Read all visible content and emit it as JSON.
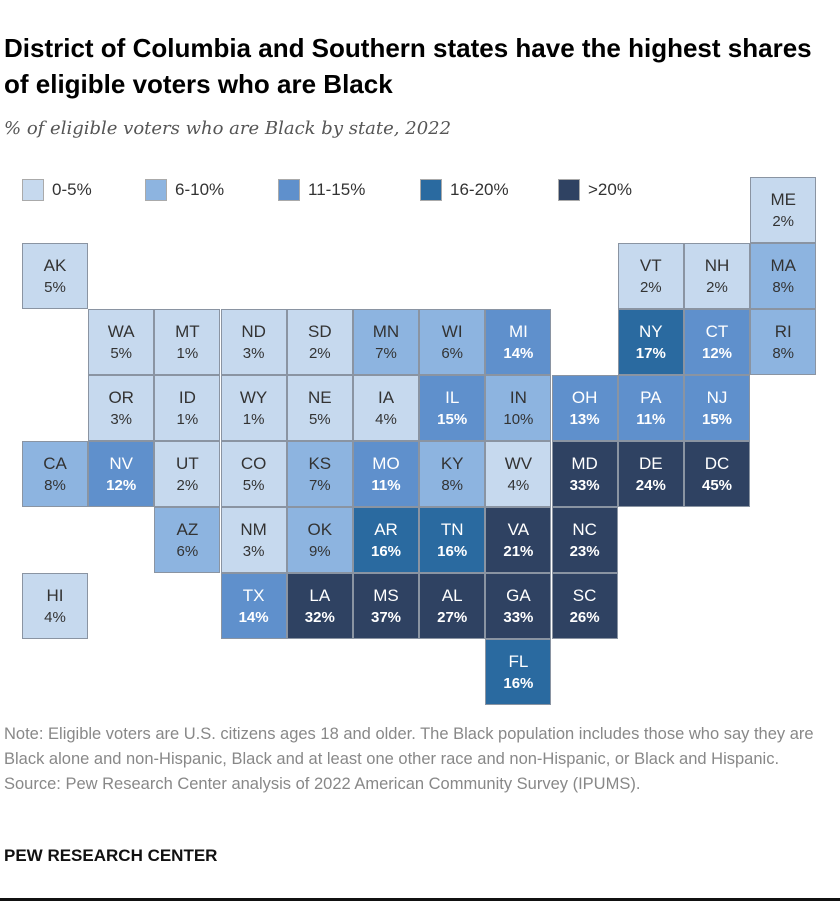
{
  "chart_data": {
    "type": "tile-map",
    "title": "District of Columbia and Southern states have the highest shares of eligible voters who are Black",
    "subtitle": "% of eligible voters who are Black by state, 2022",
    "legend": [
      {
        "label": "0-5%",
        "color": "#c6d9ee"
      },
      {
        "label": "6-10%",
        "color": "#8db4e0"
      },
      {
        "label": "11-15%",
        "color": "#5f90cc"
      },
      {
        "label": "16-20%",
        "color": "#2a6aa0"
      },
      {
        "label": ">20%",
        "color": "#2f4262"
      }
    ],
    "states": [
      {
        "abbr": "ME",
        "value": 2,
        "row": 0,
        "col": 11
      },
      {
        "abbr": "AK",
        "value": 5,
        "row": 1,
        "col": 0
      },
      {
        "abbr": "VT",
        "value": 2,
        "row": 1,
        "col": 9
      },
      {
        "abbr": "NH",
        "value": 2,
        "row": 1,
        "col": 10
      },
      {
        "abbr": "MA",
        "value": 8,
        "row": 1,
        "col": 11
      },
      {
        "abbr": "WA",
        "value": 5,
        "row": 2,
        "col": 1
      },
      {
        "abbr": "MT",
        "value": 1,
        "row": 2,
        "col": 2
      },
      {
        "abbr": "ND",
        "value": 3,
        "row": 2,
        "col": 3
      },
      {
        "abbr": "SD",
        "value": 2,
        "row": 2,
        "col": 4
      },
      {
        "abbr": "MN",
        "value": 7,
        "row": 2,
        "col": 5
      },
      {
        "abbr": "WI",
        "value": 6,
        "row": 2,
        "col": 6
      },
      {
        "abbr": "MI",
        "value": 14,
        "row": 2,
        "col": 7
      },
      {
        "abbr": "NY",
        "value": 17,
        "row": 2,
        "col": 9
      },
      {
        "abbr": "CT",
        "value": 12,
        "row": 2,
        "col": 10
      },
      {
        "abbr": "RI",
        "value": 8,
        "row": 2,
        "col": 11
      },
      {
        "abbr": "OR",
        "value": 3,
        "row": 3,
        "col": 1
      },
      {
        "abbr": "ID",
        "value": 1,
        "row": 3,
        "col": 2
      },
      {
        "abbr": "WY",
        "value": 1,
        "row": 3,
        "col": 3
      },
      {
        "abbr": "NE",
        "value": 5,
        "row": 3,
        "col": 4
      },
      {
        "abbr": "IA",
        "value": 4,
        "row": 3,
        "col": 5
      },
      {
        "abbr": "IL",
        "value": 15,
        "row": 3,
        "col": 6
      },
      {
        "abbr": "IN",
        "value": 10,
        "row": 3,
        "col": 7
      },
      {
        "abbr": "OH",
        "value": 13,
        "row": 3,
        "col": 8
      },
      {
        "abbr": "PA",
        "value": 11,
        "row": 3,
        "col": 9
      },
      {
        "abbr": "NJ",
        "value": 15,
        "row": 3,
        "col": 10
      },
      {
        "abbr": "CA",
        "value": 8,
        "row": 4,
        "col": 0
      },
      {
        "abbr": "NV",
        "value": 12,
        "row": 4,
        "col": 1
      },
      {
        "abbr": "UT",
        "value": 2,
        "row": 4,
        "col": 2
      },
      {
        "abbr": "CO",
        "value": 5,
        "row": 4,
        "col": 3
      },
      {
        "abbr": "KS",
        "value": 7,
        "row": 4,
        "col": 4
      },
      {
        "abbr": "MO",
        "value": 11,
        "row": 4,
        "col": 5
      },
      {
        "abbr": "KY",
        "value": 8,
        "row": 4,
        "col": 6
      },
      {
        "abbr": "WV",
        "value": 4,
        "row": 4,
        "col": 7
      },
      {
        "abbr": "MD",
        "value": 33,
        "row": 4,
        "col": 8
      },
      {
        "abbr": "DE",
        "value": 24,
        "row": 4,
        "col": 9
      },
      {
        "abbr": "DC",
        "value": 45,
        "row": 4,
        "col": 10
      },
      {
        "abbr": "AZ",
        "value": 6,
        "row": 5,
        "col": 2
      },
      {
        "abbr": "NM",
        "value": 3,
        "row": 5,
        "col": 3
      },
      {
        "abbr": "OK",
        "value": 9,
        "row": 5,
        "col": 4
      },
      {
        "abbr": "AR",
        "value": 16,
        "row": 5,
        "col": 5
      },
      {
        "abbr": "TN",
        "value": 16,
        "row": 5,
        "col": 6
      },
      {
        "abbr": "VA",
        "value": 21,
        "row": 5,
        "col": 7
      },
      {
        "abbr": "NC",
        "value": 23,
        "row": 5,
        "col": 8
      },
      {
        "abbr": "HI",
        "value": 4,
        "row": 6,
        "col": 0
      },
      {
        "abbr": "TX",
        "value": 14,
        "row": 6,
        "col": 3
      },
      {
        "abbr": "LA",
        "value": 32,
        "row": 6,
        "col": 4
      },
      {
        "abbr": "MS",
        "value": 37,
        "row": 6,
        "col": 5
      },
      {
        "abbr": "AL",
        "value": 27,
        "row": 6,
        "col": 6
      },
      {
        "abbr": "GA",
        "value": 33,
        "row": 6,
        "col": 7
      },
      {
        "abbr": "SC",
        "value": 26,
        "row": 6,
        "col": 8
      },
      {
        "abbr": "FL",
        "value": 16,
        "row": 7,
        "col": 7
      }
    ]
  },
  "note": "Note: Eligible voters are U.S. citizens ages 18 and older. The Black population includes those who say they are Black alone and non-Hispanic, Black and at least one other race and non-Hispanic, or Black and Hispanic.",
  "source": "Source: Pew Research Center analysis of 2022 American Community Survey (IPUMS).",
  "brand": "PEW RESEARCH CENTER"
}
